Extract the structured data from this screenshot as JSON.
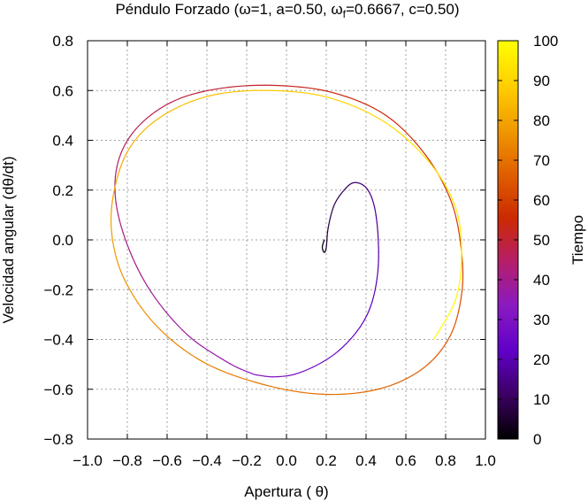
{
  "chart_data": {
    "type": "line",
    "title": "Péndulo Forzado (ω=1, a=0.50,  ω",
    "title_sub": "f",
    "title_tail": "=0.6667, c=0.50)",
    "xlabel": "Apertura ( θ)",
    "ylabel": "Velocidad angular (dθ/dt)",
    "colorbar_label": "Tiempo",
    "xlim": [
      -1.0,
      1.0
    ],
    "ylim": [
      -0.8,
      0.8
    ],
    "xticks": [
      "−1.0",
      "−0.8",
      "−0.6",
      "−0.4",
      "−0.2",
      "0.0",
      "0.2",
      "0.4",
      "0.6",
      "0.8",
      "1.0"
    ],
    "xtick_values": [
      -1.0,
      -0.8,
      -0.6,
      -0.4,
      -0.2,
      0.0,
      0.2,
      0.4,
      0.6,
      0.8,
      1.0
    ],
    "yticks": [
      "−0.8",
      "−0.6",
      "−0.4",
      "−0.2",
      "0.0",
      "0.2",
      "0.4",
      "0.6",
      "0.8"
    ],
    "ytick_values": [
      -0.8,
      -0.6,
      -0.4,
      -0.2,
      0.0,
      0.2,
      0.4,
      0.6,
      0.8
    ],
    "colorbar_ticks": [
      "0",
      "10",
      "20",
      "30",
      "40",
      "50",
      "60",
      "70",
      "80",
      "90",
      "100"
    ],
    "colorbar_tick_values": [
      0,
      10,
      20,
      30,
      40,
      50,
      60,
      70,
      80,
      90,
      100
    ],
    "colorbar_range": [
      0,
      100
    ],
    "colormap": [
      "#000000",
      "#3c0063",
      "#6000c8",
      "#8a1ac2",
      "#b51e6a",
      "#cc2a00",
      "#e06000",
      "#f09a00",
      "#ffd000",
      "#ffff00"
    ],
    "grid": true,
    "series": [
      {
        "x": [
          0.19,
          0.18,
          0.19,
          0.2,
          0.21,
          0.24,
          0.29,
          0.34,
          0.4,
          0.44,
          0.46,
          0.46,
          0.43,
          0.37,
          0.27,
          0.16,
          0.04,
          -0.06,
          -0.13,
          -0.18,
          -0.3,
          -0.5,
          -0.68,
          -0.8,
          -0.86,
          -0.84,
          -0.74,
          -0.56,
          -0.32,
          -0.04,
          0.24,
          0.5,
          0.7,
          0.83,
          0.88,
          0.88,
          0.82,
          0.68,
          0.46,
          0.18,
          -0.12,
          -0.42,
          -0.66,
          -0.82,
          -0.88,
          -0.86,
          -0.78,
          -0.62,
          -0.38,
          -0.08,
          0.22,
          0.5,
          0.72,
          0.85,
          0.88,
          0.85,
          0.74
        ],
        "y": [
          0.0,
          -0.03,
          -0.05,
          -0.03,
          0.05,
          0.14,
          0.2,
          0.23,
          0.21,
          0.14,
          0.02,
          -0.12,
          -0.25,
          -0.35,
          -0.44,
          -0.5,
          -0.54,
          -0.55,
          -0.545,
          -0.535,
          -0.49,
          -0.38,
          -0.21,
          -0.02,
          0.17,
          0.33,
          0.46,
          0.56,
          0.61,
          0.62,
          0.59,
          0.5,
          0.34,
          0.15,
          -0.05,
          -0.22,
          -0.39,
          -0.52,
          -0.6,
          -0.62,
          -0.58,
          -0.49,
          -0.34,
          -0.15,
          0.04,
          0.22,
          0.38,
          0.5,
          0.58,
          0.6,
          0.57,
          0.47,
          0.31,
          0.13,
          -0.06,
          -0.24,
          -0.4
        ],
        "t": [
          0,
          1.7,
          3.5,
          5.3,
          7.1,
          8.9,
          10.6,
          12.4,
          14.2,
          16.0,
          17.8,
          19.6,
          21.3,
          23.1,
          24.9,
          26.7,
          28.5,
          30.3,
          32.0,
          33.8,
          35.6,
          37.4,
          39.2,
          41.0,
          42.8,
          44.5,
          46.3,
          48.1,
          49.9,
          51.7,
          53.5,
          55.2,
          57.0,
          58.8,
          60.6,
          62.4,
          64.2,
          65.9,
          67.7,
          69.5,
          71.3,
          73.1,
          74.9,
          76.7,
          78.4,
          80.2,
          82.0,
          83.8,
          85.6,
          87.4,
          89.1,
          90.9,
          92.7,
          94.5,
          96.3,
          98.1,
          100
        ]
      }
    ]
  }
}
